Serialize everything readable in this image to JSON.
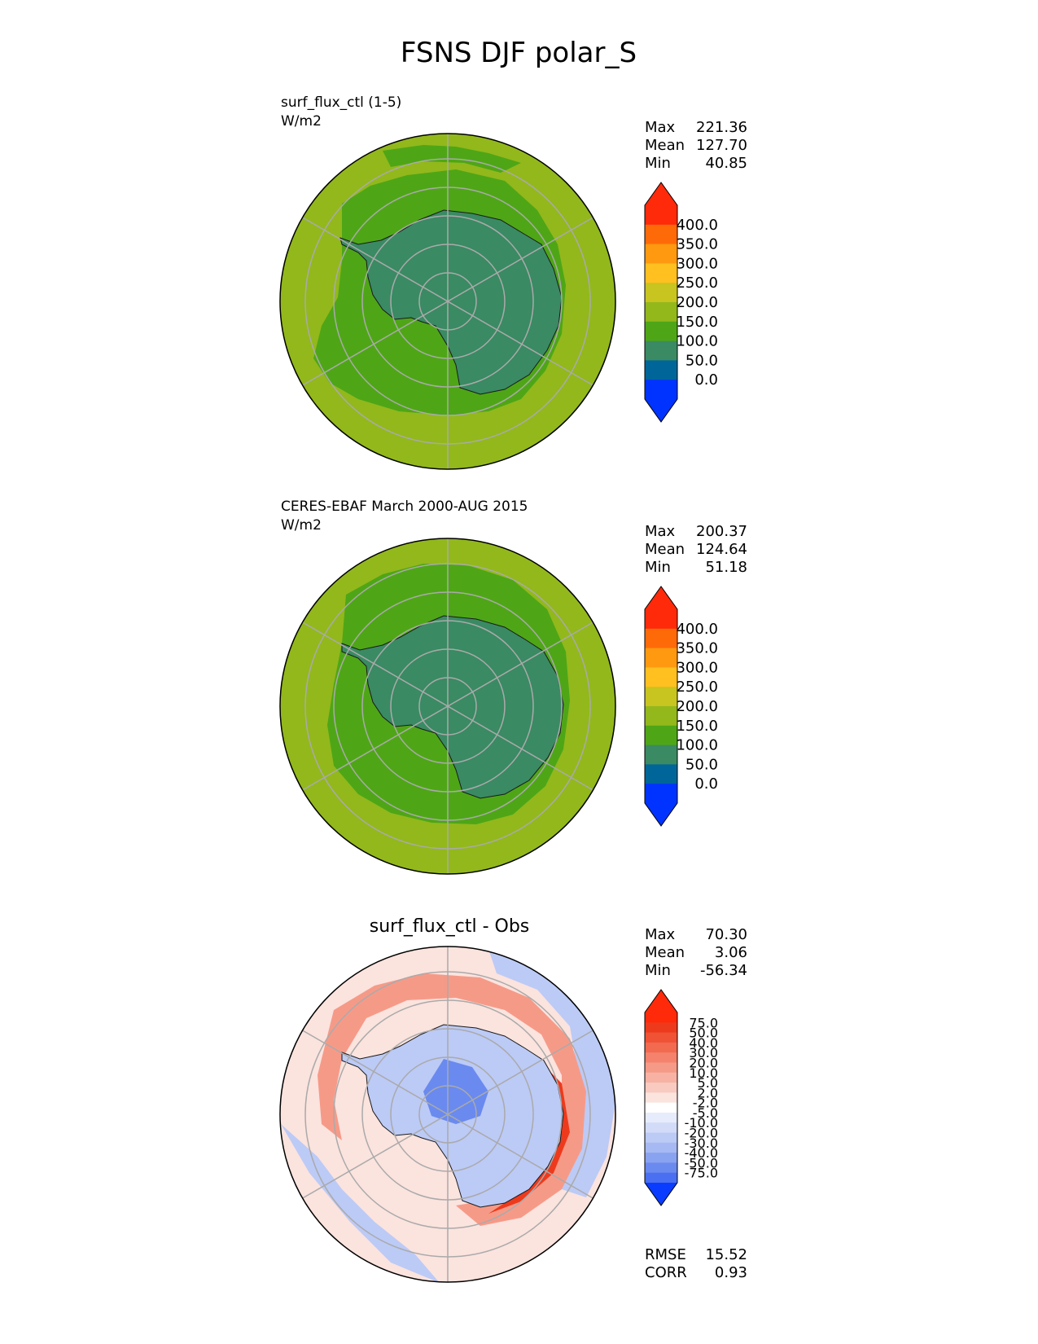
{
  "figure": {
    "title": "FSNS DJF polar_S"
  },
  "colors": {
    "land_contour": "#1a1a1a",
    "gridline": "#aaaaaa",
    "abs_levels": [
      "#0033ff",
      "#006699",
      "#3a8a63",
      "#4ea616",
      "#92b81c",
      "#c8c420",
      "#ffc020",
      "#ff9a10",
      "#ff6a08",
      "#ff2a0a"
    ],
    "diff_levels": [
      "#0a3cff",
      "#2a55f5",
      "#4a6ff0",
      "#6a8aef",
      "#8aa3f0",
      "#a6b9f3",
      "#bccaf6",
      "#d2dcf9",
      "#e6ecfc",
      "#ffffff",
      "#fbe3de",
      "#f9cac0",
      "#f7b2a4",
      "#f69a88",
      "#f4826c",
      "#f26a50",
      "#f05236",
      "#ee3a1c",
      "#ff2a0a"
    ]
  },
  "panels": [
    {
      "title_line1": "surf_flux_ctl (1-5)",
      "units": "W/m2",
      "stats": [
        {
          "label": "Max",
          "value": "221.36"
        },
        {
          "label": "Mean",
          "value": "127.70"
        },
        {
          "label": "Min",
          "value": "40.85"
        }
      ],
      "colorbar_ticks": [
        "400.0",
        "350.0",
        "300.0",
        "250.0",
        "200.0",
        "150.0",
        "100.0",
        "50.0",
        "0.0"
      ]
    },
    {
      "title_line1": "CERES-EBAF March 2000-AUG 2015",
      "units": "W/m2",
      "stats": [
        {
          "label": "Max",
          "value": "200.37"
        },
        {
          "label": "Mean",
          "value": "124.64"
        },
        {
          "label": "Min",
          "value": "51.18"
        }
      ],
      "colorbar_ticks": [
        "400.0",
        "350.0",
        "300.0",
        "250.0",
        "200.0",
        "150.0",
        "100.0",
        "50.0",
        "0.0"
      ]
    },
    {
      "title": "surf_flux_ctl - Obs",
      "stats": [
        {
          "label": "Max",
          "value": "70.30"
        },
        {
          "label": "Mean",
          "value": "3.06"
        },
        {
          "label": "Min",
          "value": "-56.34"
        }
      ],
      "colorbar_ticks": [
        "75.0",
        "50.0",
        "40.0",
        "30.0",
        "20.0",
        "10.0",
        "5.0",
        "2.0",
        "-2.0",
        "-5.0",
        "-10.0",
        "-20.0",
        "-30.0",
        "-40.0",
        "-50.0",
        "-75.0"
      ],
      "metrics": [
        {
          "label": "RMSE",
          "value": "15.52"
        },
        {
          "label": "CORR",
          "value": "0.93"
        }
      ]
    }
  ]
}
